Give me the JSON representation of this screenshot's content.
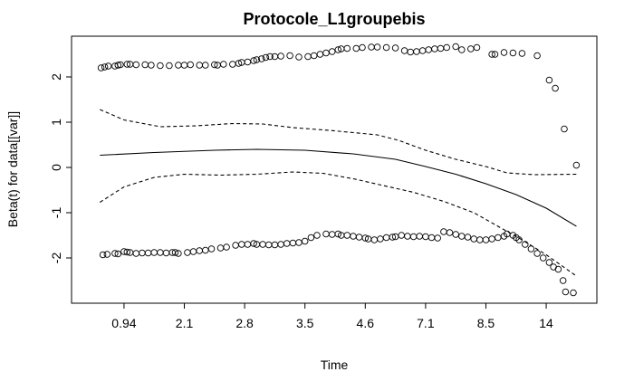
{
  "chart_data": {
    "type": "scatter",
    "title": "Protocole_L1groupebis",
    "xlabel": "Time",
    "ylabel": "Beta(t) for data[[var]]",
    "x_ticks": [
      "0.94",
      "2.1",
      "2.8",
      "3.5",
      "4.6",
      "7.1",
      "8.5",
      "14"
    ],
    "y_ticks": [
      -2,
      -1,
      0,
      1,
      2
    ],
    "ylim": [
      -3,
      3
    ],
    "grid": false,
    "legend": "none",
    "x_scale": "transformed (rank-based km)",
    "series": [
      {
        "kind": "points",
        "upper_points": [
          [
            0.62,
            2.2
          ],
          [
            0.68,
            2.22
          ],
          [
            0.74,
            2.24
          ],
          [
            0.85,
            2.24
          ],
          [
            0.9,
            2.26
          ],
          [
            0.94,
            2.27
          ],
          [
            1.05,
            2.28
          ],
          [
            1.1,
            2.28
          ],
          [
            1.2,
            2.27
          ],
          [
            1.35,
            2.27
          ],
          [
            1.45,
            2.26
          ],
          [
            1.6,
            2.25
          ],
          [
            1.75,
            2.25
          ],
          [
            1.9,
            2.26
          ],
          [
            2.0,
            2.26
          ],
          [
            2.1,
            2.27
          ],
          [
            2.25,
            2.26
          ],
          [
            2.35,
            2.26
          ],
          [
            2.5,
            2.27
          ],
          [
            2.55,
            2.26
          ],
          [
            2.65,
            2.28
          ],
          [
            2.8,
            2.28
          ],
          [
            2.9,
            2.3
          ],
          [
            2.95,
            2.32
          ],
          [
            3.05,
            2.33
          ],
          [
            3.15,
            2.36
          ],
          [
            3.2,
            2.38
          ],
          [
            3.28,
            2.4
          ],
          [
            3.35,
            2.43
          ],
          [
            3.42,
            2.45
          ],
          [
            3.5,
            2.45
          ],
          [
            3.6,
            2.46
          ],
          [
            3.75,
            2.47
          ],
          [
            3.9,
            2.44
          ],
          [
            4.05,
            2.45
          ],
          [
            4.15,
            2.47
          ],
          [
            4.25,
            2.5
          ],
          [
            4.35,
            2.53
          ],
          [
            4.45,
            2.56
          ],
          [
            4.55,
            2.6
          ],
          [
            4.6,
            2.62
          ],
          [
            4.7,
            2.63
          ],
          [
            4.85,
            2.63
          ],
          [
            4.95,
            2.65
          ],
          [
            5.1,
            2.66
          ],
          [
            5.2,
            2.66
          ],
          [
            5.35,
            2.65
          ],
          [
            5.5,
            2.64
          ],
          [
            5.65,
            2.58
          ],
          [
            5.75,
            2.55
          ],
          [
            5.85,
            2.56
          ],
          [
            5.95,
            2.58
          ],
          [
            6.05,
            2.6
          ],
          [
            6.15,
            2.62
          ],
          [
            6.25,
            2.63
          ],
          [
            6.35,
            2.65
          ],
          [
            6.5,
            2.67
          ],
          [
            6.6,
            2.6
          ],
          [
            6.75,
            2.62
          ],
          [
            6.85,
            2.65
          ],
          [
            7.1,
            2.5
          ],
          [
            7.15,
            2.5
          ],
          [
            7.3,
            2.54
          ],
          [
            7.45,
            2.53
          ],
          [
            7.6,
            2.52
          ],
          [
            7.85,
            2.47
          ],
          [
            8.05,
            1.93
          ],
          [
            8.15,
            1.75
          ],
          [
            8.3,
            0.85
          ],
          [
            8.5,
            0.05
          ]
        ],
        "lower_points": [
          [
            0.65,
            -1.93
          ],
          [
            0.72,
            -1.92
          ],
          [
            0.85,
            -1.9
          ],
          [
            0.9,
            -1.91
          ],
          [
            1.0,
            -1.86
          ],
          [
            1.05,
            -1.87
          ],
          [
            1.1,
            -1.88
          ],
          [
            1.2,
            -1.9
          ],
          [
            1.3,
            -1.89
          ],
          [
            1.4,
            -1.89
          ],
          [
            1.5,
            -1.88
          ],
          [
            1.6,
            -1.88
          ],
          [
            1.7,
            -1.89
          ],
          [
            1.8,
            -1.88
          ],
          [
            1.85,
            -1.88
          ],
          [
            1.9,
            -1.9
          ],
          [
            2.05,
            -1.88
          ],
          [
            2.15,
            -1.86
          ],
          [
            2.25,
            -1.84
          ],
          [
            2.35,
            -1.83
          ],
          [
            2.45,
            -1.8
          ],
          [
            2.6,
            -1.78
          ],
          [
            2.7,
            -1.76
          ],
          [
            2.85,
            -1.72
          ],
          [
            2.95,
            -1.7
          ],
          [
            3.05,
            -1.7
          ],
          [
            3.15,
            -1.68
          ],
          [
            3.2,
            -1.7
          ],
          [
            3.3,
            -1.7
          ],
          [
            3.4,
            -1.71
          ],
          [
            3.5,
            -1.71
          ],
          [
            3.6,
            -1.7
          ],
          [
            3.7,
            -1.68
          ],
          [
            3.8,
            -1.67
          ],
          [
            3.9,
            -1.66
          ],
          [
            4.0,
            -1.63
          ],
          [
            4.1,
            -1.55
          ],
          [
            4.2,
            -1.5
          ],
          [
            4.35,
            -1.47
          ],
          [
            4.45,
            -1.48
          ],
          [
            4.55,
            -1.47
          ],
          [
            4.6,
            -1.5
          ],
          [
            4.7,
            -1.5
          ],
          [
            4.8,
            -1.52
          ],
          [
            4.9,
            -1.54
          ],
          [
            5.0,
            -1.56
          ],
          [
            5.05,
            -1.58
          ],
          [
            5.15,
            -1.6
          ],
          [
            5.25,
            -1.58
          ],
          [
            5.35,
            -1.55
          ],
          [
            5.45,
            -1.54
          ],
          [
            5.5,
            -1.53
          ],
          [
            5.6,
            -1.5
          ],
          [
            5.7,
            -1.52
          ],
          [
            5.8,
            -1.53
          ],
          [
            5.9,
            -1.52
          ],
          [
            6.0,
            -1.53
          ],
          [
            6.1,
            -1.55
          ],
          [
            6.2,
            -1.56
          ],
          [
            6.3,
            -1.42
          ],
          [
            6.4,
            -1.44
          ],
          [
            6.5,
            -1.48
          ],
          [
            6.6,
            -1.52
          ],
          [
            6.7,
            -1.54
          ],
          [
            6.8,
            -1.58
          ],
          [
            6.9,
            -1.6
          ],
          [
            7.0,
            -1.6
          ],
          [
            7.1,
            -1.58
          ],
          [
            7.2,
            -1.55
          ],
          [
            7.3,
            -1.52
          ],
          [
            7.35,
            -1.47
          ],
          [
            7.45,
            -1.5
          ],
          [
            7.5,
            -1.55
          ],
          [
            7.55,
            -1.6
          ],
          [
            7.65,
            -1.7
          ],
          [
            7.75,
            -1.8
          ],
          [
            7.85,
            -1.9
          ],
          [
            7.95,
            -2.0
          ],
          [
            8.05,
            -2.1
          ],
          [
            8.12,
            -2.2
          ],
          [
            8.2,
            -2.25
          ],
          [
            8.28,
            -2.5
          ],
          [
            8.32,
            -2.75
          ],
          [
            8.45,
            -2.77
          ]
        ]
      },
      {
        "kind": "line",
        "style": "solid",
        "points": [
          [
            0.6,
            0.27
          ],
          [
            1.5,
            0.33
          ],
          [
            2.5,
            0.38
          ],
          [
            3.2,
            0.4
          ],
          [
            4.0,
            0.38
          ],
          [
            4.8,
            0.3
          ],
          [
            5.5,
            0.18
          ],
          [
            6.0,
            0.02
          ],
          [
            6.5,
            -0.15
          ],
          [
            7.0,
            -0.36
          ],
          [
            7.5,
            -0.6
          ],
          [
            8.0,
            -0.9
          ],
          [
            8.5,
            -1.3
          ]
        ]
      },
      {
        "kind": "line",
        "style": "dashed",
        "name_hint": "upper band",
        "points": [
          [
            0.6,
            1.28
          ],
          [
            1.0,
            1.05
          ],
          [
            1.6,
            0.9
          ],
          [
            2.2,
            0.92
          ],
          [
            2.8,
            0.97
          ],
          [
            3.3,
            0.96
          ],
          [
            3.8,
            0.88
          ],
          [
            4.4,
            0.82
          ],
          [
            4.8,
            0.77
          ],
          [
            5.2,
            0.72
          ],
          [
            5.55,
            0.6
          ],
          [
            6.0,
            0.38
          ],
          [
            6.5,
            0.18
          ],
          [
            7.0,
            0.02
          ],
          [
            7.35,
            -0.12
          ],
          [
            7.8,
            -0.16
          ],
          [
            8.5,
            -0.15
          ]
        ]
      },
      {
        "kind": "line",
        "style": "dashed",
        "name_hint": "lower band",
        "points": [
          [
            0.6,
            -0.77
          ],
          [
            1.0,
            -0.43
          ],
          [
            1.5,
            -0.22
          ],
          [
            2.0,
            -0.15
          ],
          [
            2.6,
            -0.17
          ],
          [
            3.2,
            -0.15
          ],
          [
            3.8,
            -0.1
          ],
          [
            4.3,
            -0.13
          ],
          [
            4.8,
            -0.25
          ],
          [
            5.3,
            -0.4
          ],
          [
            5.8,
            -0.55
          ],
          [
            6.3,
            -0.75
          ],
          [
            6.8,
            -1.0
          ],
          [
            7.2,
            -1.3
          ],
          [
            7.6,
            -1.6
          ],
          [
            8.0,
            -1.93
          ],
          [
            8.5,
            -2.4
          ]
        ]
      }
    ]
  }
}
